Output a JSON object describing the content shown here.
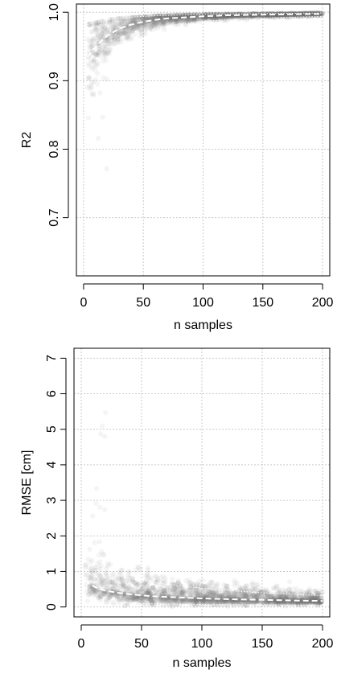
{
  "chart_data": [
    {
      "type": "scatter",
      "title": "",
      "xlabel": "n samples",
      "ylabel": "R2",
      "xlim": [
        -6,
        206
      ],
      "ylim": [
        0.615,
        1.012
      ],
      "xticks": [
        0,
        50,
        100,
        150,
        200
      ],
      "yticks": [
        0.7,
        0.8,
        0.9,
        1.0
      ],
      "xtick_labels": [
        "0",
        "50",
        "100",
        "150",
        "200"
      ],
      "ytick_labels": [
        "0.7",
        "0.8",
        "0.9",
        "1.0"
      ],
      "grid": true,
      "point_color": "#707070",
      "series": [
        {
          "line": "dashed",
          "color": "#ffffff",
          "x": [
            3,
            5,
            8,
            12,
            16,
            20,
            25,
            30,
            35,
            40,
            50,
            60,
            70,
            80,
            100,
            120,
            150,
            180,
            200
          ],
          "y": [
            0.935,
            0.938,
            0.945,
            0.953,
            0.96,
            0.966,
            0.971,
            0.976,
            0.979,
            0.982,
            0.986,
            0.989,
            0.991,
            0.992,
            0.994,
            0.9955,
            0.9965,
            0.9972,
            0.9975
          ]
        },
        {
          "line": "dotted",
          "color": "#ffffff",
          "x": [
            3,
            5,
            8,
            12,
            16,
            20,
            25,
            30,
            40,
            50,
            60,
            80,
            100,
            130,
            160,
            200
          ],
          "y": [
            0.84,
            0.86,
            0.88,
            0.905,
            0.92,
            0.932,
            0.943,
            0.952,
            0.963,
            0.971,
            0.976,
            0.983,
            0.987,
            0.99,
            0.992,
            0.994
          ]
        },
        {
          "line": "dotted",
          "color": "#ffffff",
          "x": [
            3,
            10,
            20,
            40,
            60,
            100,
            150,
            200
          ],
          "y": [
            0.982,
            0.985,
            0.989,
            0.993,
            0.995,
            0.997,
            0.998,
            0.999
          ]
        }
      ]
    },
    {
      "type": "scatter",
      "title": "",
      "xlabel": "n samples",
      "ylabel": "RMSE [cm]",
      "xlim": [
        -6,
        206
      ],
      "ylim": [
        -0.28,
        7.28
      ],
      "xticks": [
        0,
        50,
        100,
        150,
        200
      ],
      "yticks": [
        0,
        1,
        2,
        3,
        4,
        5,
        6,
        7
      ],
      "xtick_labels": [
        "0",
        "50",
        "100",
        "150",
        "200"
      ],
      "ytick_labels": [
        "0",
        "1",
        "2",
        "3",
        "4",
        "5",
        "6",
        "7"
      ],
      "grid": true,
      "point_color": "#707070",
      "series": [
        {
          "line": "dashed",
          "color": "#ffffff",
          "x": [
            3,
            5,
            8,
            12,
            16,
            20,
            25,
            30,
            40,
            50,
            60,
            80,
            100,
            120,
            150,
            180,
            200
          ],
          "y": [
            0.75,
            0.7,
            0.62,
            0.55,
            0.5,
            0.46,
            0.43,
            0.4,
            0.36,
            0.33,
            0.3,
            0.27,
            0.24,
            0.22,
            0.2,
            0.18,
            0.17
          ]
        },
        {
          "line": "dotted",
          "color": "#ffffff",
          "x": [
            3,
            5,
            8,
            12,
            16,
            20,
            25,
            30,
            40,
            50,
            60,
            80,
            100,
            120,
            150,
            180,
            200
          ],
          "y": [
            1.65,
            1.5,
            1.35,
            1.2,
            1.1,
            1.0,
            0.93,
            0.88,
            0.8,
            0.74,
            0.69,
            0.6,
            0.53,
            0.47,
            0.4,
            0.35,
            0.32
          ]
        },
        {
          "line": "dotted",
          "color": "#ffffff",
          "x": [
            3,
            5,
            10,
            20,
            40,
            60,
            100,
            150,
            200
          ],
          "y": [
            0.3,
            0.25,
            0.2,
            0.15,
            0.11,
            0.09,
            0.07,
            0.06,
            0.05
          ]
        }
      ]
    }
  ]
}
